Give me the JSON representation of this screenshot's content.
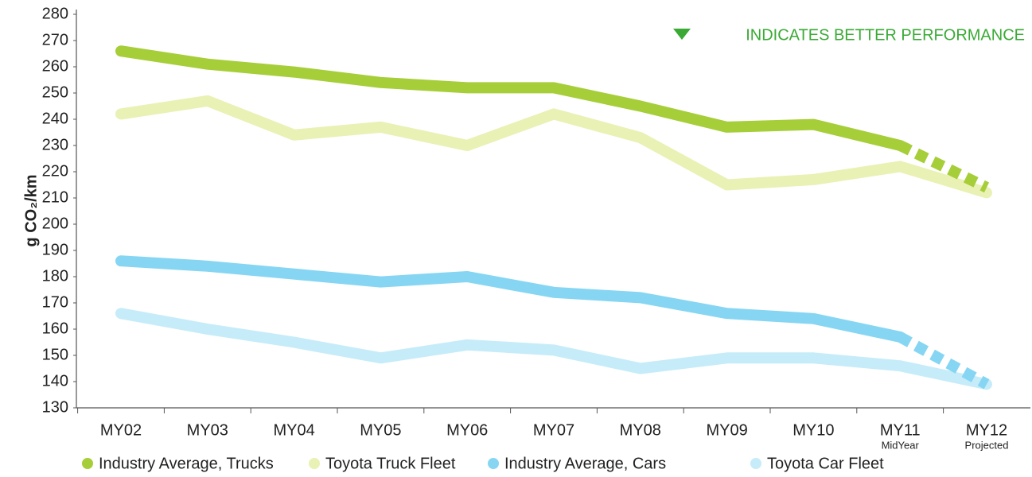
{
  "chart_data": {
    "type": "line",
    "y_label": "g CO₂/km",
    "annotation": "INDICATES BETTER PERFORMANCE",
    "annotation_color": "#3aaa35",
    "categories": [
      "MY02",
      "MY03",
      "MY04",
      "MY05",
      "MY06",
      "MY07",
      "MY08",
      "MY09",
      "MY10",
      "MY11",
      "MY12"
    ],
    "category_notes": [
      null,
      null,
      null,
      null,
      null,
      null,
      null,
      null,
      null,
      "MidYear",
      "Projected"
    ],
    "ylim": [
      130,
      280
    ],
    "yticks": [
      130,
      140,
      150,
      160,
      170,
      180,
      190,
      200,
      210,
      220,
      230,
      240,
      250,
      260,
      270,
      280
    ],
    "legend": "bottom",
    "series": [
      {
        "name": "Industry Average, Trucks",
        "color": "#a6ce39",
        "dashed_last_segment": true,
        "values": [
          266,
          261,
          258,
          254,
          252,
          252,
          245,
          237,
          238,
          230,
          214
        ]
      },
      {
        "name": "Toyota Truck Fleet",
        "color": "#e9f1b4",
        "dashed_last_segment": false,
        "values": [
          242,
          247,
          234,
          237,
          230,
          242,
          233,
          215,
          217,
          222,
          212
        ]
      },
      {
        "name": "Industry Average, Cars",
        "color": "#86d6f3",
        "dashed_last_segment": true,
        "values": [
          186,
          184,
          181,
          178,
          180,
          174,
          172,
          166,
          164,
          157,
          139
        ]
      },
      {
        "name": "Toyota Car Fleet",
        "color": "#c6ecf9",
        "dashed_last_segment": false,
        "values": [
          166,
          160,
          155,
          149,
          154,
          152,
          145,
          149,
          149,
          146,
          139
        ]
      }
    ]
  }
}
